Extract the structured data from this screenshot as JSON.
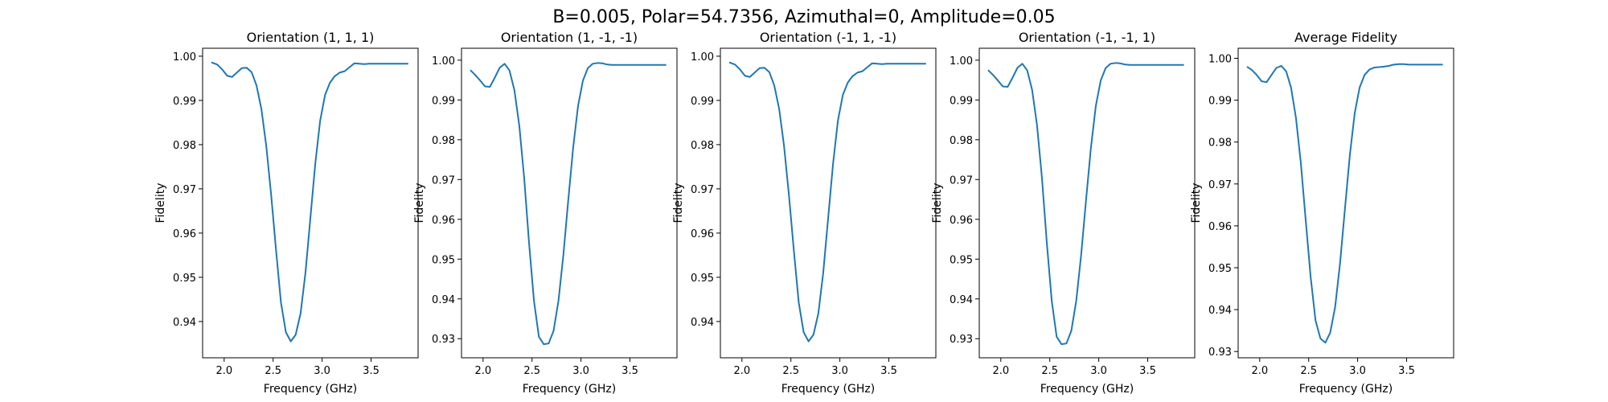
{
  "suptitle": "B=0.005, Polar=54.7356, Azimuthal=0, Amplitude=0.05",
  "colors": {
    "line": "#1f77b4",
    "axes": "#000000",
    "background": "#ffffff"
  },
  "chart_data": [
    {
      "type": "line",
      "title": "Orientation (1, 1, 1)",
      "xlabel": "Frequency (GHz)",
      "ylabel": "Fidelity",
      "xlim": [
        1.78,
        3.98
      ],
      "ylim": [
        0.9318,
        1.0018
      ],
      "xticks": [
        "2.0",
        "2.5",
        "3.0",
        "3.5"
      ],
      "yticks": [
        "0.94",
        "0.95",
        "0.96",
        "0.97",
        "0.98",
        "0.99",
        "1.00"
      ],
      "grid": false,
      "series": [
        {
          "x": [
            1.87,
            1.93,
            1.98,
            2.03,
            2.08,
            2.13,
            2.18,
            2.23,
            2.28,
            2.33,
            2.38,
            2.43,
            2.48,
            2.53,
            2.58,
            2.63,
            2.68,
            2.73,
            2.78,
            2.83,
            2.88,
            2.93,
            2.98,
            3.03,
            3.08,
            3.13,
            3.18,
            3.23,
            3.28,
            3.33,
            3.38,
            3.43,
            3.48,
            3.53,
            3.58,
            3.63,
            3.68,
            3.73,
            3.78,
            3.83,
            3.88
          ],
          "y": [
            0.9986,
            0.9981,
            0.997,
            0.9956,
            0.9953,
            0.9963,
            0.9973,
            0.9974,
            0.9964,
            0.9934,
            0.9881,
            0.9797,
            0.9686,
            0.9561,
            0.9443,
            0.9376,
            0.9355,
            0.937,
            0.9418,
            0.951,
            0.9633,
            0.9756,
            0.9854,
            0.9912,
            0.994,
            0.9955,
            0.9963,
            0.9966,
            0.9975,
            0.9984,
            0.9983,
            0.9982,
            0.9983,
            0.9983,
            0.9983,
            0.9983,
            0.9983,
            0.9983,
            0.9983,
            0.9983,
            0.9983
          ]
        }
      ]
    },
    {
      "type": "line",
      "title": "Orientation (1, -1, -1)",
      "xlabel": "Frequency (GHz)",
      "ylabel": "Fidelity",
      "xlim": [
        1.78,
        3.98
      ],
      "ylim": [
        0.9252,
        1.003
      ],
      "xticks": [
        "2.0",
        "2.5",
        "3.0",
        "3.5"
      ],
      "yticks": [
        "0.93",
        "0.94",
        "0.95",
        "0.96",
        "0.97",
        "0.98",
        "0.99",
        "1.00"
      ],
      "grid": false,
      "series": [
        {
          "x": [
            1.87,
            1.92,
            1.97,
            2.02,
            2.07,
            2.12,
            2.17,
            2.22,
            2.27,
            2.32,
            2.37,
            2.42,
            2.47,
            2.52,
            2.57,
            2.62,
            2.67,
            2.72,
            2.77,
            2.82,
            2.87,
            2.92,
            2.97,
            3.02,
            3.07,
            3.12,
            3.17,
            3.22,
            3.27,
            3.32,
            3.37,
            3.42,
            3.47,
            3.52,
            3.57,
            3.62,
            3.67,
            3.72,
            3.77,
            3.82,
            3.87
          ],
          "y": [
            0.9975,
            0.9963,
            0.9949,
            0.9934,
            0.9933,
            0.9956,
            0.9981,
            0.9991,
            0.9974,
            0.9925,
            0.9836,
            0.9704,
            0.954,
            0.9395,
            0.9305,
            0.9286,
            0.9288,
            0.932,
            0.9395,
            0.951,
            0.9648,
            0.978,
            0.9885,
            0.9949,
            0.998,
            0.9991,
            0.9993,
            0.9992,
            0.9989,
            0.9988,
            0.9988,
            0.9988,
            0.9988,
            0.9988,
            0.9988,
            0.9988,
            0.9988,
            0.9988,
            0.9988,
            0.9988,
            0.9988
          ]
        }
      ]
    },
    {
      "type": "line",
      "title": "Orientation (-1, 1, -1)",
      "xlabel": "Frequency (GHz)",
      "ylabel": "Fidelity",
      "xlim": [
        1.78,
        3.98
      ],
      "ylim": [
        0.9318,
        1.0018
      ],
      "xticks": [
        "2.0",
        "2.5",
        "3.0",
        "3.5"
      ],
      "yticks": [
        "0.94",
        "0.95",
        "0.96",
        "0.97",
        "0.98",
        "0.99",
        "1.00"
      ],
      "grid": false,
      "series": [
        {
          "x": [
            1.87,
            1.93,
            1.98,
            2.03,
            2.08,
            2.13,
            2.18,
            2.23,
            2.28,
            2.33,
            2.38,
            2.43,
            2.48,
            2.53,
            2.58,
            2.63,
            2.68,
            2.73,
            2.78,
            2.83,
            2.88,
            2.93,
            2.98,
            3.03,
            3.08,
            3.13,
            3.18,
            3.23,
            3.28,
            3.33,
            3.38,
            3.43,
            3.48,
            3.53,
            3.58,
            3.63,
            3.68,
            3.73,
            3.78,
            3.83,
            3.88
          ],
          "y": [
            0.9986,
            0.9981,
            0.997,
            0.9956,
            0.9953,
            0.9963,
            0.9973,
            0.9974,
            0.9964,
            0.9934,
            0.9881,
            0.9797,
            0.9686,
            0.9561,
            0.9443,
            0.9376,
            0.9355,
            0.937,
            0.9418,
            0.951,
            0.9633,
            0.9756,
            0.9854,
            0.9912,
            0.994,
            0.9955,
            0.9963,
            0.9966,
            0.9975,
            0.9984,
            0.9983,
            0.9982,
            0.9983,
            0.9983,
            0.9983,
            0.9983,
            0.9983,
            0.9983,
            0.9983,
            0.9983,
            0.9983
          ]
        }
      ]
    },
    {
      "type": "line",
      "title": "Orientation (-1, -1, 1)",
      "xlabel": "Frequency (GHz)",
      "ylabel": "Fidelity",
      "xlim": [
        1.78,
        3.98
      ],
      "ylim": [
        0.9252,
        1.003
      ],
      "xticks": [
        "2.0",
        "2.5",
        "3.0",
        "3.5"
      ],
      "yticks": [
        "0.93",
        "0.94",
        "0.95",
        "0.96",
        "0.97",
        "0.98",
        "0.99",
        "1.00"
      ],
      "grid": false,
      "series": [
        {
          "x": [
            1.87,
            1.92,
            1.97,
            2.02,
            2.07,
            2.12,
            2.17,
            2.22,
            2.27,
            2.32,
            2.37,
            2.42,
            2.47,
            2.52,
            2.57,
            2.62,
            2.67,
            2.72,
            2.77,
            2.82,
            2.87,
            2.92,
            2.97,
            3.02,
            3.07,
            3.12,
            3.17,
            3.22,
            3.27,
            3.32,
            3.37,
            3.42,
            3.47,
            3.52,
            3.57,
            3.62,
            3.67,
            3.72,
            3.77,
            3.82,
            3.87
          ],
          "y": [
            0.9975,
            0.9963,
            0.9949,
            0.9934,
            0.9933,
            0.9956,
            0.9981,
            0.9991,
            0.9974,
            0.9925,
            0.9836,
            0.9704,
            0.954,
            0.9395,
            0.9305,
            0.9286,
            0.9288,
            0.932,
            0.9395,
            0.951,
            0.9648,
            0.978,
            0.9885,
            0.9949,
            0.998,
            0.9991,
            0.9993,
            0.9992,
            0.9989,
            0.9988,
            0.9988,
            0.9988,
            0.9988,
            0.9988,
            0.9988,
            0.9988,
            0.9988,
            0.9988,
            0.9988,
            0.9988,
            0.9988
          ]
        }
      ]
    },
    {
      "type": "line",
      "title": "Average Fidelity",
      "xlabel": "Frequency (GHz)",
      "ylabel": "Fidelity",
      "xlim": [
        1.78,
        3.98
      ],
      "ylim": [
        0.9285,
        1.0024
      ],
      "xticks": [
        "2.0",
        "2.5",
        "3.0",
        "3.5"
      ],
      "yticks": [
        "0.93",
        "0.94",
        "0.95",
        "0.96",
        "0.97",
        "0.98",
        "0.99",
        "1.00"
      ],
      "grid": false,
      "series": [
        {
          "x": [
            1.87,
            1.92,
            1.97,
            2.02,
            2.07,
            2.12,
            2.17,
            2.22,
            2.27,
            2.32,
            2.37,
            2.42,
            2.47,
            2.52,
            2.57,
            2.62,
            2.67,
            2.72,
            2.77,
            2.82,
            2.87,
            2.92,
            2.97,
            3.02,
            3.07,
            3.12,
            3.17,
            3.22,
            3.27,
            3.32,
            3.37,
            3.42,
            3.47,
            3.52,
            3.57,
            3.62,
            3.67,
            3.72,
            3.77,
            3.82,
            3.87
          ],
          "y": [
            0.998,
            0.9972,
            0.996,
            0.9945,
            0.9943,
            0.996,
            0.9977,
            0.9982,
            0.9969,
            0.993,
            0.9858,
            0.975,
            0.9613,
            0.9478,
            0.9374,
            0.9331,
            0.9321,
            0.9345,
            0.9406,
            0.951,
            0.964,
            0.9768,
            0.9869,
            0.993,
            0.996,
            0.9973,
            0.9978,
            0.9979,
            0.998,
            0.9982,
            0.9985,
            0.9986,
            0.9986,
            0.9985,
            0.9985,
            0.9985,
            0.9985,
            0.9985,
            0.9985,
            0.9985,
            0.9985
          ]
        }
      ]
    }
  ]
}
